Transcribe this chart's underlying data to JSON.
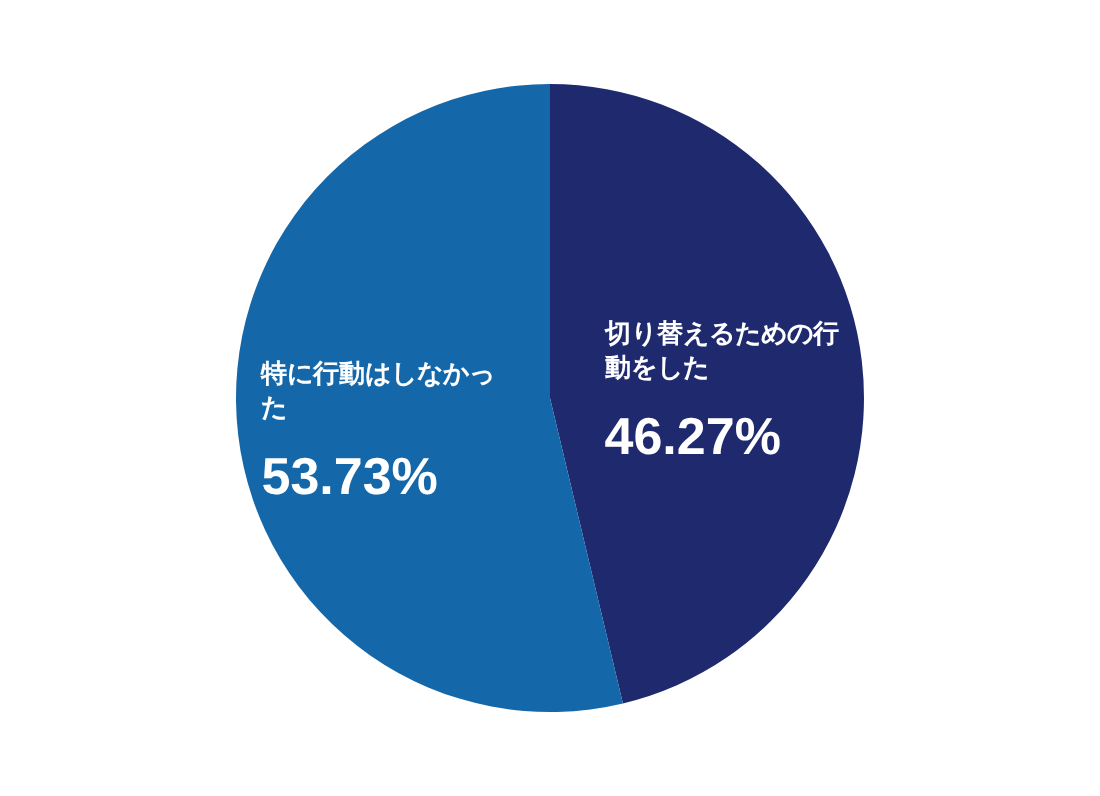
{
  "chart_data": {
    "type": "pie",
    "categories": [
      "切り替えるための行動をした",
      "特に行動はしなかった"
    ],
    "values": [
      46.27,
      53.73
    ],
    "colors": [
      "#1f2a6e",
      "#1467a9"
    ],
    "value_labels": [
      "46.27%",
      "53.73%"
    ],
    "legend": false
  }
}
